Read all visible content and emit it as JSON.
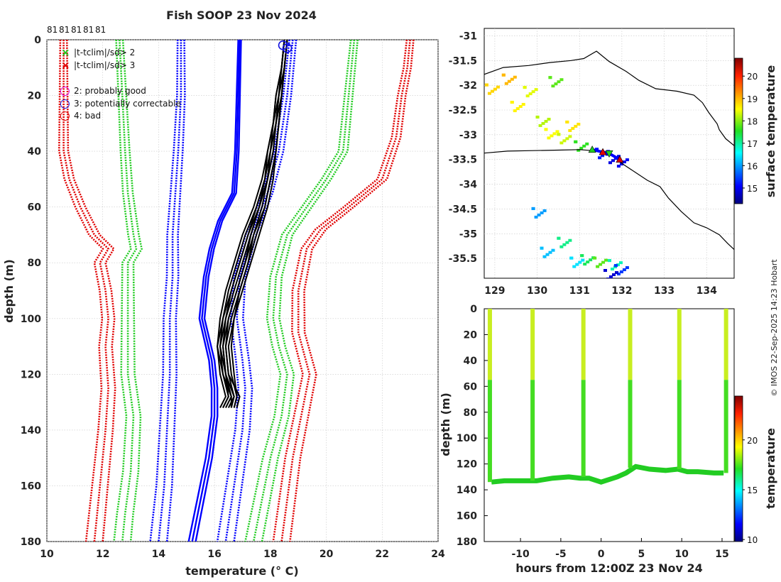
{
  "figure": {
    "title": "Fish SOOP 23 Nov 2024",
    "credit": "© IMOS 22-Sep-2025 14:23 Hobart",
    "top_counts": [
      "81",
      "81",
      "81",
      "81",
      "81"
    ]
  },
  "chart_data": [
    {
      "name": "temperature-depth-profiles",
      "type": "line",
      "xlabel": "temperature (° C)",
      "ylabel": "depth (m)",
      "xlim": [
        10,
        24
      ],
      "ylim": [
        180,
        0
      ],
      "xticks": [
        10,
        12,
        14,
        16,
        18,
        20,
        22,
        24
      ],
      "yticks": [
        0,
        20,
        40,
        60,
        80,
        100,
        120,
        140,
        160,
        180
      ],
      "grid": true,
      "legend": {
        "position": "top-left",
        "flag_entries": [
          {
            "marker": "×",
            "color": "#22cc22",
            "label": "|t-tclim|/sd> 2"
          },
          {
            "marker": "×",
            "color": "#e00000",
            "label": "|t-tclim|/sd> 3"
          }
        ],
        "qc_entries": [
          {
            "marker": "○",
            "color": "#e000e0",
            "label": "2: probably good"
          },
          {
            "marker": "○",
            "color": "#1010e0",
            "label": "3: potentially correctable"
          },
          {
            "marker": "○",
            "color": "#e00000",
            "label": "4: bad"
          }
        ]
      },
      "series": [
        {
          "name": "climatology mean",
          "color": "#0000ff",
          "style": "solid",
          "points": [
            [
              16.9,
              0
            ],
            [
              16.85,
              20
            ],
            [
              16.8,
              40
            ],
            [
              16.7,
              55
            ],
            [
              16.2,
              65
            ],
            [
              15.9,
              75
            ],
            [
              15.7,
              85
            ],
            [
              15.55,
              100
            ],
            [
              15.9,
              115
            ],
            [
              16.0,
              125
            ],
            [
              16.0,
              135
            ],
            [
              15.8,
              150
            ],
            [
              15.5,
              165
            ],
            [
              15.2,
              180
            ]
          ]
        },
        {
          "name": "climatology +1 sd",
          "color": "#0000ff",
          "style": "dotted",
          "points": [
            [
              18.8,
              0
            ],
            [
              18.6,
              20
            ],
            [
              18.3,
              40
            ],
            [
              17.9,
              55
            ],
            [
              17.3,
              70
            ],
            [
              16.9,
              85
            ],
            [
              16.8,
              100
            ],
            [
              17.0,
              115
            ],
            [
              17.1,
              125
            ],
            [
              17.0,
              140
            ],
            [
              16.7,
              160
            ],
            [
              16.4,
              180
            ]
          ]
        },
        {
          "name": "climatology -1 sd",
          "color": "#0000ff",
          "style": "dotted",
          "points": [
            [
              14.8,
              0
            ],
            [
              14.8,
              20
            ],
            [
              14.7,
              40
            ],
            [
              14.6,
              55
            ],
            [
              14.5,
              70
            ],
            [
              14.5,
              85
            ],
            [
              14.4,
              100
            ],
            [
              14.4,
              120
            ],
            [
              14.3,
              140
            ],
            [
              14.2,
              160
            ],
            [
              14.0,
              180
            ]
          ]
        },
        {
          "name": "climatology +2 sd",
          "color": "#22cc22",
          "style": "dotted",
          "points": [
            [
              21.0,
              0
            ],
            [
              20.8,
              20
            ],
            [
              20.6,
              40
            ],
            [
              20.0,
              50
            ],
            [
              19.3,
              60
            ],
            [
              18.6,
              70
            ],
            [
              18.2,
              85
            ],
            [
              18.1,
              100
            ],
            [
              18.3,
              110
            ],
            [
              18.6,
              120
            ],
            [
              18.4,
              135
            ],
            [
              18.0,
              150
            ],
            [
              17.7,
              165
            ],
            [
              17.4,
              180
            ]
          ]
        },
        {
          "name": "climatology -2 sd",
          "color": "#22cc22",
          "style": "dotted",
          "points": [
            [
              12.6,
              0
            ],
            [
              12.7,
              20
            ],
            [
              12.8,
              40
            ],
            [
              12.9,
              55
            ],
            [
              13.1,
              70
            ],
            [
              13.2,
              75
            ],
            [
              12.9,
              80
            ],
            [
              12.9,
              100
            ],
            [
              12.9,
              120
            ],
            [
              13.1,
              135
            ],
            [
              13.0,
              155
            ],
            [
              12.8,
              170
            ],
            [
              12.7,
              180
            ]
          ]
        },
        {
          "name": "climatology +3 sd",
          "color": "#e00000",
          "style": "dotted",
          "points": [
            [
              23.0,
              0
            ],
            [
              22.9,
              10
            ],
            [
              22.7,
              20
            ],
            [
              22.5,
              35
            ],
            [
              22.0,
              50
            ],
            [
              20.8,
              60
            ],
            [
              19.8,
              68
            ],
            [
              19.3,
              75
            ],
            [
              19.0,
              90
            ],
            [
              19.0,
              105
            ],
            [
              19.4,
              120
            ],
            [
              19.1,
              135
            ],
            [
              18.8,
              150
            ],
            [
              18.6,
              165
            ],
            [
              18.4,
              180
            ]
          ]
        },
        {
          "name": "climatology -3 sd",
          "color": "#e00000",
          "style": "dotted",
          "points": [
            [
              10.6,
              0
            ],
            [
              10.6,
              20
            ],
            [
              10.6,
              40
            ],
            [
              10.8,
              50
            ],
            [
              11.2,
              60
            ],
            [
              11.7,
              70
            ],
            [
              12.2,
              75
            ],
            [
              11.9,
              80
            ],
            [
              12.1,
              90
            ],
            [
              12.2,
              100
            ],
            [
              12.1,
              110
            ],
            [
              12.2,
              125
            ],
            [
              12.1,
              140
            ],
            [
              11.9,
              160
            ],
            [
              11.7,
              180
            ]
          ]
        }
      ],
      "profiles": {
        "color": "#000000",
        "count": 10,
        "depth": [
          0,
          10,
          20,
          30,
          40,
          50,
          60,
          70,
          80,
          90,
          100,
          110,
          120,
          128,
          132
        ],
        "temperature": [
          [
            18.5,
            18.4,
            18.3,
            18.2,
            18.1,
            17.9,
            17.6,
            17.2,
            16.9,
            16.6,
            16.3,
            16.2,
            16.4,
            16.5,
            16.3
          ],
          [
            18.6,
            18.5,
            18.4,
            18.3,
            18.2,
            18.0,
            17.8,
            17.4,
            17.1,
            16.8,
            16.5,
            16.4,
            16.5,
            16.7,
            16.5
          ],
          [
            18.5,
            18.4,
            18.2,
            18.1,
            18.0,
            17.8,
            17.5,
            17.1,
            16.8,
            16.5,
            16.3,
            16.1,
            16.3,
            16.6,
            16.4
          ],
          [
            18.6,
            18.5,
            18.4,
            18.3,
            18.2,
            18.1,
            17.9,
            17.6,
            17.3,
            17.0,
            16.7,
            16.5,
            16.6,
            16.8,
            16.7
          ],
          [
            18.5,
            18.4,
            18.3,
            18.1,
            17.9,
            17.7,
            17.4,
            17.0,
            16.7,
            16.4,
            16.2,
            16.1,
            16.2,
            16.4,
            16.2
          ],
          [
            18.6,
            18.5,
            18.3,
            18.2,
            18.0,
            17.9,
            17.6,
            17.3,
            17.0,
            16.7,
            16.4,
            16.3,
            16.4,
            16.6,
            16.6
          ],
          [
            18.5,
            18.4,
            18.3,
            18.2,
            18.1,
            17.9,
            17.7,
            17.4,
            17.2,
            16.9,
            16.6,
            16.4,
            16.5,
            16.9,
            16.8
          ],
          [
            18.6,
            18.5,
            18.4,
            18.2,
            18.0,
            17.8,
            17.5,
            17.2,
            16.9,
            16.6,
            16.4,
            16.2,
            16.3,
            16.5,
            16.3
          ],
          [
            18.5,
            18.4,
            18.2,
            18.1,
            17.9,
            17.8,
            17.6,
            17.3,
            17.1,
            16.8,
            16.5,
            16.3,
            16.4,
            16.7,
            16.6
          ],
          [
            18.6,
            18.5,
            18.4,
            18.3,
            18.2,
            18.0,
            17.8,
            17.5,
            17.2,
            16.9,
            16.7,
            16.6,
            16.7,
            16.8,
            16.7
          ]
        ]
      },
      "qc_markers": [
        {
          "flag": "3",
          "temperature": 18.45,
          "depth": 2
        },
        {
          "flag": "3",
          "temperature": 18.6,
          "depth": 3
        }
      ]
    },
    {
      "name": "surface-temperature-map",
      "type": "heatmap",
      "xlim": [
        128.75,
        134.65
      ],
      "ylim": [
        -35.9,
        -30.85
      ],
      "xticks": [
        129,
        130,
        131,
        132,
        133,
        134
      ],
      "yticks": [
        -31,
        -31.5,
        -32,
        -32.5,
        -33,
        -33.5,
        -34,
        -34.5,
        -35,
        -35.5
      ],
      "grid": true,
      "colorbar": {
        "label": "surface temperature",
        "range": [
          14.3,
          20.8
        ],
        "ticks": [
          15,
          16,
          17,
          18,
          19,
          20
        ]
      },
      "coastline": [
        [
          128.75,
          -31.78
        ],
        [
          129.2,
          -31.64
        ],
        [
          129.8,
          -31.6
        ],
        [
          130.3,
          -31.54
        ],
        [
          130.8,
          -31.5
        ],
        [
          131.1,
          -31.46
        ],
        [
          131.4,
          -31.31
        ],
        [
          131.7,
          -31.52
        ],
        [
          132.1,
          -31.72
        ],
        [
          132.4,
          -31.9
        ],
        [
          132.8,
          -32.07
        ],
        [
          133.3,
          -32.12
        ],
        [
          133.7,
          -32.2
        ],
        [
          133.9,
          -32.35
        ],
        [
          134.05,
          -32.55
        ],
        [
          134.25,
          -32.78
        ],
        [
          134.3,
          -32.9
        ],
        [
          134.45,
          -33.08
        ],
        [
          134.65,
          -33.22
        ]
      ],
      "island_coast": [
        [
          128.75,
          -33.37
        ],
        [
          129.3,
          -33.33
        ],
        [
          129.9,
          -33.32
        ],
        [
          130.5,
          -33.31
        ],
        [
          131.0,
          -33.3
        ],
        [
          131.3,
          -33.32
        ],
        [
          131.6,
          -33.36
        ],
        [
          131.85,
          -33.45
        ],
        [
          132.0,
          -33.58
        ],
        [
          132.3,
          -33.75
        ],
        [
          132.6,
          -33.92
        ],
        [
          132.9,
          -34.05
        ],
        [
          133.1,
          -34.28
        ],
        [
          133.4,
          -34.55
        ],
        [
          133.7,
          -34.78
        ],
        [
          134.0,
          -34.88
        ],
        [
          134.3,
          -35.02
        ],
        [
          134.5,
          -35.2
        ],
        [
          134.65,
          -35.32
        ]
      ],
      "surface_cells": [
        {
          "lon": 128.9,
          "lat": -32.05,
          "value": 18.8
        },
        {
          "lon": 129.3,
          "lat": -31.85,
          "value": 19.0
        },
        {
          "lon": 129.5,
          "lat": -32.4,
          "value": 18.6
        },
        {
          "lon": 129.8,
          "lat": -32.1,
          "value": 18.4
        },
        {
          "lon": 130.1,
          "lat": -32.7,
          "value": 18.2
        },
        {
          "lon": 130.3,
          "lat": -32.95,
          "value": 18.5
        },
        {
          "lon": 130.6,
          "lat": -33.05,
          "value": 18.3
        },
        {
          "lon": 130.8,
          "lat": -32.8,
          "value": 18.7
        },
        {
          "lon": 130.4,
          "lat": -31.9,
          "value": 17.8
        },
        {
          "lon": 131.0,
          "lat": -33.2,
          "value": 17.6
        },
        {
          "lon": 131.5,
          "lat": -33.35,
          "value": 15.2
        },
        {
          "lon": 131.75,
          "lat": -33.45,
          "value": 14.9
        },
        {
          "lon": 131.95,
          "lat": -33.52,
          "value": 15.0
        },
        {
          "lon": 130.9,
          "lat": -35.55,
          "value": 16.4
        },
        {
          "lon": 131.15,
          "lat": -35.5,
          "value": 17.3
        },
        {
          "lon": 131.45,
          "lat": -35.55,
          "value": 17.8
        },
        {
          "lon": 131.8,
          "lat": -35.6,
          "value": 16.9
        },
        {
          "lon": 131.95,
          "lat": -35.7,
          "value": 15.4
        },
        {
          "lon": 131.7,
          "lat": -35.8,
          "value": 14.8
        },
        {
          "lon": 130.2,
          "lat": -35.35,
          "value": 16.2
        },
        {
          "lon": 130.6,
          "lat": -35.15,
          "value": 17.1
        },
        {
          "lon": 130.0,
          "lat": -34.55,
          "value": 16.0
        }
      ],
      "track_markers": [
        {
          "lon": 131.3,
          "lat": -33.3,
          "color": "#22cc22",
          "marker": "triangle"
        },
        {
          "lon": 131.55,
          "lat": -33.35,
          "color": "#e00000",
          "marker": "triangle"
        },
        {
          "lon": 131.7,
          "lat": -33.38,
          "color": "#22cc22",
          "marker": "triangle-down"
        },
        {
          "lon": 131.95,
          "lat": -33.5,
          "color": "#e00000",
          "marker": "triangle"
        }
      ]
    },
    {
      "name": "depth-time-section",
      "type": "scatter",
      "xlabel": "hours from 12:00Z 23 Nov 24",
      "ylabel": "depth (m)",
      "xlim": [
        -14.5,
        16.5
      ],
      "ylim": [
        180,
        0
      ],
      "xticks": [
        -10,
        -5,
        0,
        5,
        10,
        15
      ],
      "yticks": [
        0,
        20,
        40,
        60,
        80,
        100,
        120,
        140,
        160,
        180
      ],
      "colorbar": {
        "label": "temperature",
        "range": [
          9.8,
          24.4
        ],
        "ticks": [
          10,
          15,
          20
        ]
      },
      "bottom_trace": {
        "hours": [
          -13.6,
          -12,
          -10,
          -8.9,
          -8,
          -6,
          -4,
          -2.6,
          -1.5,
          0,
          2,
          3.1,
          4.3,
          6,
          8,
          9.5,
          10.7,
          12,
          14,
          15.2
        ],
        "depth": [
          134,
          133,
          133,
          133,
          133,
          131,
          130,
          131,
          131,
          134,
          130,
          127,
          122,
          124,
          125,
          124,
          126,
          126,
          127,
          127
        ]
      },
      "casts": [
        {
          "hours": -13.8,
          "bottom": 134
        },
        {
          "hours": -8.5,
          "bottom": 133
        },
        {
          "hours": -2.2,
          "bottom": 130
        },
        {
          "hours": 3.6,
          "bottom": 123
        },
        {
          "hours": 9.7,
          "bottom": 124
        },
        {
          "hours": 15.5,
          "bottom": 127
        }
      ]
    }
  ]
}
